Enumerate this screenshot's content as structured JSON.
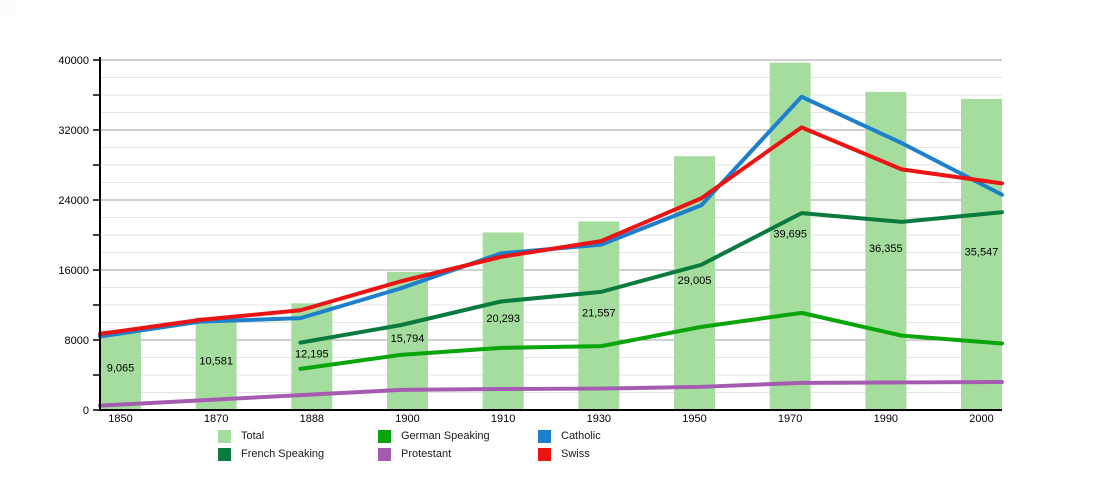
{
  "chart_data": {
    "type": "bar+line combo",
    "title": "",
    "xlabel": "",
    "ylabel": "",
    "categories": [
      "1850",
      "1870",
      "1888",
      "1900",
      "1910",
      "1930",
      "1950",
      "1970",
      "1990",
      "2000"
    ],
    "y_axis": {
      "min": 0,
      "max": 40000,
      "major_step": 8000,
      "minor_step": 2000,
      "tick_step": 4000,
      "major_labels": [
        "0",
        "8000",
        "16000",
        "24000",
        "32000",
        "40000"
      ],
      "grid": true
    },
    "bar_series": {
      "name": "Total",
      "color": "#a5dd9e",
      "values": [
        9065,
        10581,
        12195,
        15794,
        20293,
        21557,
        29005,
        39695,
        36355,
        35547
      ],
      "value_labels": [
        "9,065",
        "10,581",
        "12,195",
        "15,794",
        "20,293",
        "21,557",
        "29,005",
        "39,695",
        "36,355",
        "35,547"
      ]
    },
    "line_series": [
      {
        "name": "Protestant",
        "color": "#a55cb0",
        "values": [
          500,
          1100,
          1700,
          2300,
          2400,
          2450,
          2650,
          3100,
          3150,
          3200
        ]
      },
      {
        "name": "German Speaking",
        "color": "#0aa50a",
        "values": [
          null,
          null,
          4700,
          6300,
          7100,
          7300,
          9500,
          11100,
          8500,
          7600
        ]
      },
      {
        "name": "French Speaking",
        "color": "#0a7b3f",
        "values": [
          null,
          null,
          7700,
          9700,
          12400,
          13500,
          16600,
          22500,
          21500,
          22600
        ]
      },
      {
        "name": "Catholic",
        "color": "#1e80cc",
        "values": [
          8400,
          10100,
          10500,
          13900,
          17900,
          18900,
          23400,
          35800,
          30500,
          24600
        ]
      },
      {
        "name": "Swiss",
        "color": "#ea1414",
        "values": [
          8700,
          10300,
          11400,
          14700,
          17500,
          19300,
          24200,
          32300,
          27500,
          25900
        ]
      }
    ],
    "legend": {
      "position": "bottom",
      "items": [
        {
          "label": "Total",
          "color": "#a5dd9e",
          "col": 0,
          "row": 0
        },
        {
          "label": "French Speaking",
          "color": "#0a7b3f",
          "col": 0,
          "row": 1
        },
        {
          "label": "German Speaking",
          "color": "#0aa50a",
          "col": 1,
          "row": 0
        },
        {
          "label": "Protestant",
          "color": "#a55cb0",
          "col": 1,
          "row": 1
        },
        {
          "label": "Catholic",
          "color": "#1e80cc",
          "col": 2,
          "row": 0
        },
        {
          "label": "Swiss",
          "color": "#ea1414",
          "col": 2,
          "row": 1
        }
      ]
    }
  }
}
